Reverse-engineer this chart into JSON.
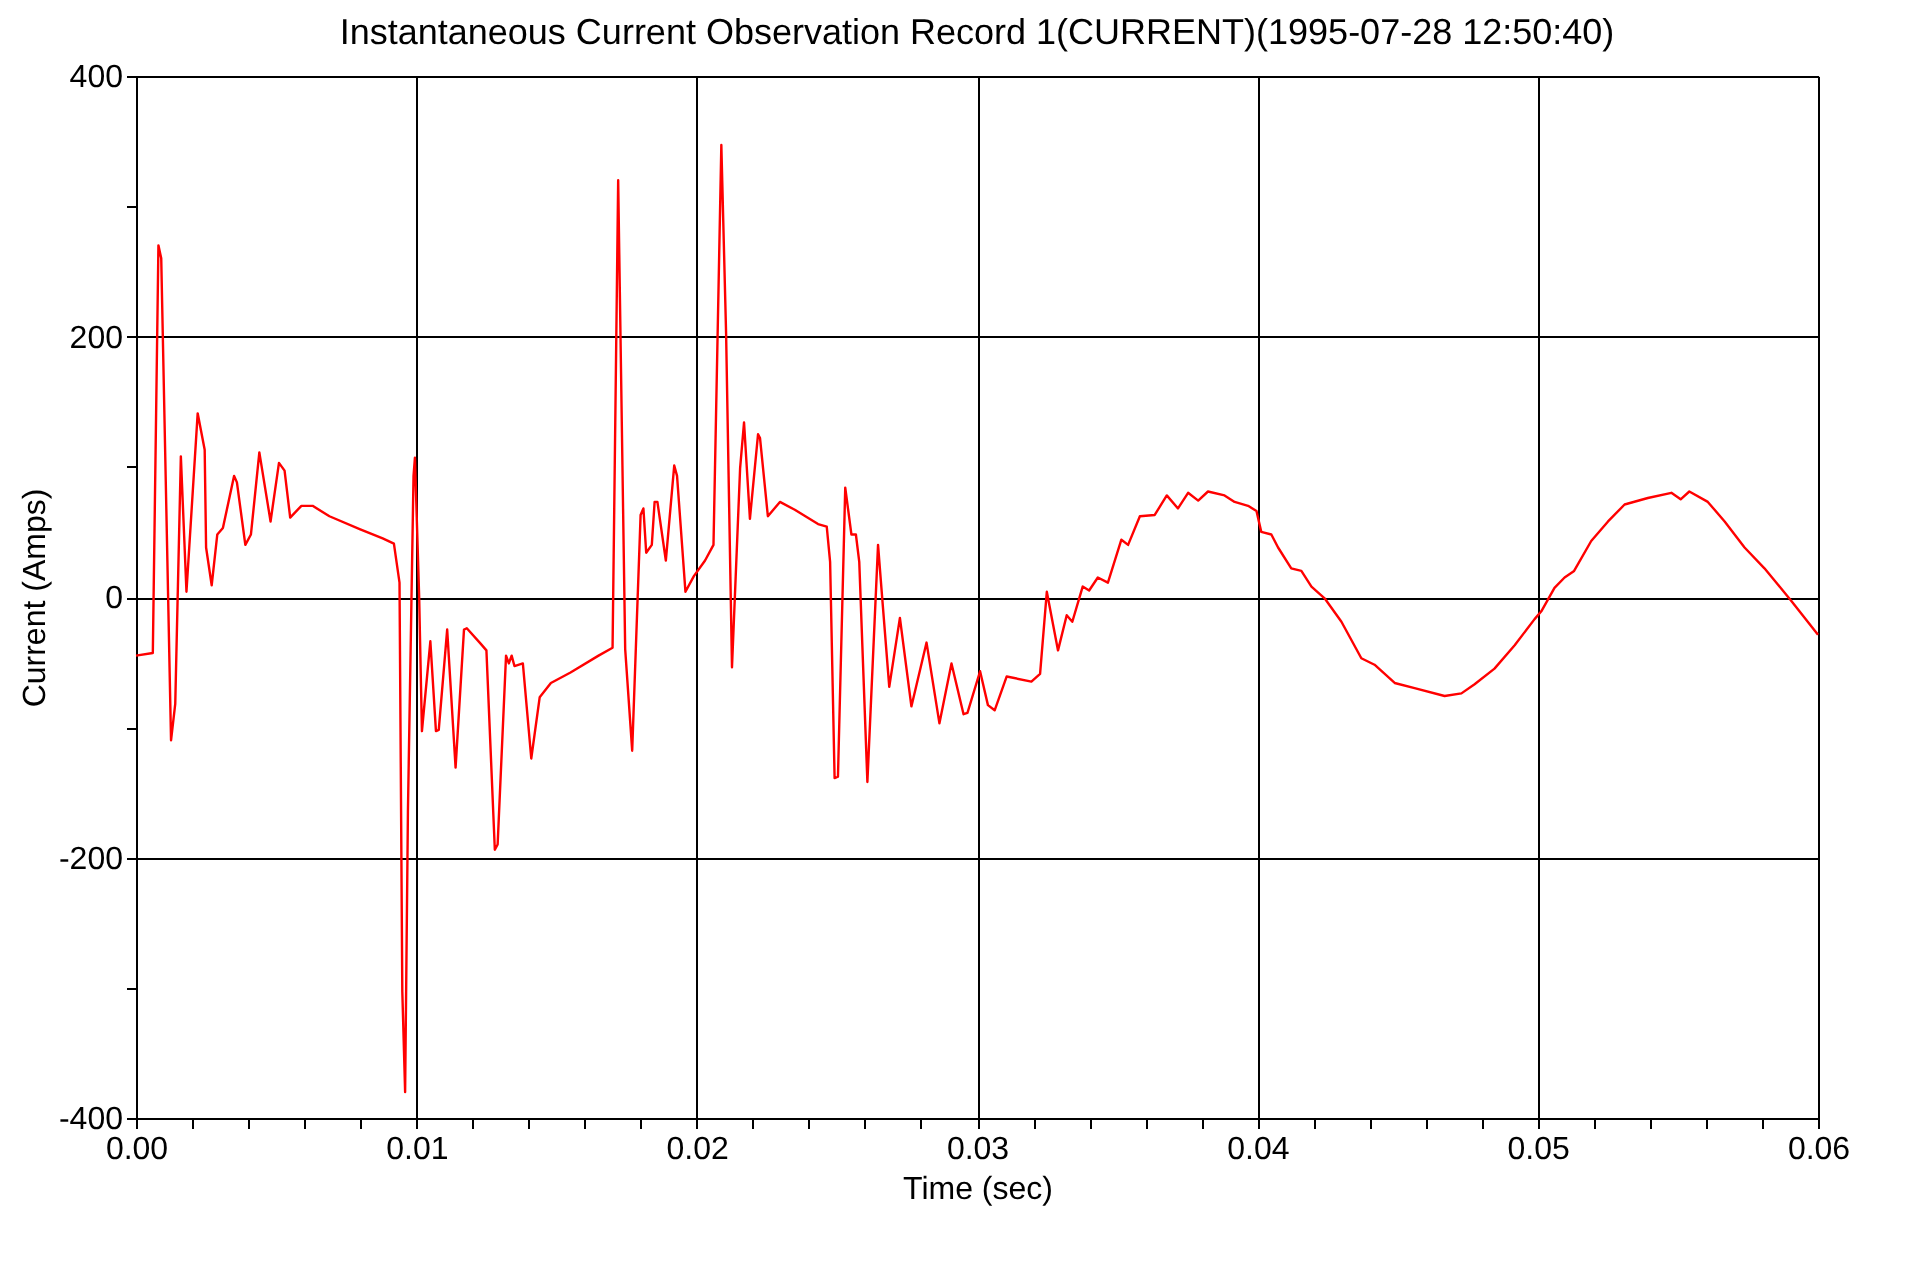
{
  "chart_data": {
    "type": "line",
    "title": "Instantaneous Current Observation Record 1(CURRENT)(1995-07-28 12:50:40)",
    "xlabel": "Time (sec)",
    "ylabel": "Current (Amps)",
    "x": [
      0,
      0.0006,
      0.0008,
      0.0009,
      0.00125,
      0.0014,
      0.0016,
      0.0018,
      0.0022,
      0.00245,
      0.0025,
      0.0027,
      0.0029,
      0.0031,
      0.0035,
      0.0036,
      0.0039,
      0.0041,
      0.0044,
      0.0048,
      0.0051,
      0.0053,
      0.0055,
      0.0059,
      0.0063,
      0.0069,
      0.008,
      0.0088,
      0.0092,
      0.0094,
      0.0095,
      0.0096,
      0.0097,
      0.0099,
      0.00995,
      0.0101,
      0.0102,
      0.0105,
      0.0107,
      0.0108,
      0.0111,
      0.0114,
      0.0117,
      0.0118,
      0.0123,
      0.0125,
      0.0128,
      0.0129,
      0.0132,
      0.0133,
      0.0134,
      0.0135,
      0.0138,
      0.0141,
      0.0144,
      0.0148,
      0.0155,
      0.0165,
      0.017,
      0.0172,
      0.01745,
      0.0177,
      0.018,
      0.0181,
      0.0182,
      0.0184,
      0.0185,
      0.0186,
      0.0189,
      0.0192,
      0.0193,
      0.0196,
      0.0199,
      0.0203,
      0.0206,
      0.02088,
      0.02105,
      0.02126,
      0.02155,
      0.02169,
      0.0219,
      0.02219,
      0.02226,
      0.02254,
      0.02297,
      0.0235,
      0.02433,
      0.02464,
      0.02476,
      0.02492,
      0.02504,
      0.0253,
      0.02552,
      0.02568,
      0.0258,
      0.02609,
      0.02647,
      0.02659,
      0.02687,
      0.02725,
      0.02766,
      0.0282,
      0.02866,
      0.02909,
      0.02952,
      0.02966,
      0.03011,
      0.03039,
      0.03063,
      0.03106,
      0.03194,
      0.03225,
      0.03249,
      0.03289,
      0.0332,
      0.0334,
      0.03377,
      0.034,
      0.03431,
      0.03467,
      0.03515,
      0.03539,
      0.03581,
      0.03634,
      0.03677,
      0.03717,
      0.03753,
      0.03789,
      0.03824,
      0.03883,
      0.03919,
      0.03967,
      0.03997,
      0.04014,
      0.0405,
      0.04074,
      0.04121,
      0.04157,
      0.04193,
      0.0424,
      0.043,
      0.04371,
      0.04418,
      0.0449,
      0.04561,
      0.04668,
      0.04728,
      0.04775,
      0.04846,
      0.04918,
      0.04989,
      0.05013,
      0.0506,
      0.05096,
      0.0513,
      0.05191,
      0.05251,
      0.0531,
      0.05393,
      0.05477,
      0.0551,
      0.05541,
      0.05607,
      0.05667,
      0.05738,
      0.05809,
      0.05905,
      0.06
    ],
    "series": [
      {
        "color": "#ff0000",
        "values": [
          -45,
          -43,
          270,
          260,
          -110,
          -82,
          108,
          4,
          141,
          113,
          38,
          9,
          48,
          53,
          93,
          88,
          40,
          48,
          111,
          58,
          103,
          97,
          61,
          70,
          70,
          62,
          52,
          45,
          41,
          11,
          -303,
          -380,
          -165,
          93,
          107,
          1,
          -103,
          -34,
          -103,
          -102,
          -25,
          -131,
          -25,
          -24,
          -36,
          -41,
          -194,
          -190,
          -45,
          -51,
          -45,
          -53,
          -51,
          -124,
          -77,
          -66,
          -58,
          -45,
          -39,
          320,
          -40,
          -118,
          63,
          68,
          34,
          40,
          73,
          73,
          28,
          101,
          93,
          4,
          16,
          28,
          40,
          347,
          202,
          -54,
          99,
          134,
          60,
          125,
          122,
          62,
          73,
          67,
          56,
          54,
          27,
          -139,
          -138,
          84,
          48,
          48,
          27,
          -142,
          40,
          7,
          -69,
          -16,
          -84,
          -35,
          -97,
          -51,
          -90,
          -89,
          -57,
          -83,
          -87,
          -61,
          -65,
          -59,
          4,
          -41,
          -14,
          -19,
          8,
          5,
          15,
          11,
          44,
          40,
          62,
          63,
          78,
          68,
          80,
          74,
          81,
          78,
          73,
          70,
          66,
          50,
          48,
          38,
          22,
          20,
          8,
          -1,
          -19,
          -47,
          -52,
          -66,
          -70,
          -76,
          -74,
          -67,
          -55,
          -37,
          -17,
          -11,
          7,
          15,
          20,
          43,
          58,
          71,
          76,
          80,
          75,
          81,
          73,
          58,
          38,
          22,
          -3,
          -29
        ]
      }
    ],
    "xlim": [
      0,
      0.06
    ],
    "xticks": [
      {
        "value": 0,
        "label": "0.00"
      },
      {
        "value": 0.002,
        "label": null
      },
      {
        "value": 0.004,
        "label": null
      },
      {
        "value": 0.006,
        "label": null
      },
      {
        "value": 0.008,
        "label": null
      },
      0.01,
      {
        "value": 0.012,
        "label": null
      },
      {
        "value": 0.014,
        "label": null
      },
      {
        "value": 0.016,
        "label": null
      },
      {
        "value": 0.018,
        "label": null
      },
      0.02,
      {
        "value": 0.022,
        "label": null
      },
      {
        "value": 0.024,
        "label": null
      },
      {
        "value": 0.026,
        "label": null
      },
      {
        "value": 0.028,
        "label": null
      },
      0.03,
      {
        "value": 0.032,
        "label": null
      },
      {
        "value": 0.034,
        "label": null
      },
      {
        "value": 0.036,
        "label": null
      },
      {
        "value": 0.038,
        "label": null
      },
      0.04,
      {
        "value": 0.042,
        "label": null
      },
      {
        "value": 0.044,
        "label": null
      },
      {
        "value": 0.046,
        "label": null
      },
      {
        "value": 0.048,
        "label": null
      },
      0.05,
      {
        "value": 0.052,
        "label": null
      },
      {
        "value": 0.054,
        "label": null
      },
      {
        "value": 0.056,
        "label": null
      },
      {
        "value": 0.058,
        "label": null
      },
      0.06
    ],
    "ylim": [
      -400,
      400
    ],
    "yticks": [
      -400,
      {
        "value": -300,
        "label": null
      },
      -200,
      {
        "value": -100,
        "label": null
      },
      0,
      {
        "value": 100,
        "label": null
      },
      200,
      {
        "value": 300,
        "label": null
      },
      400
    ],
    "grid": true,
    "line_style": "solid",
    "marker": "none"
  }
}
